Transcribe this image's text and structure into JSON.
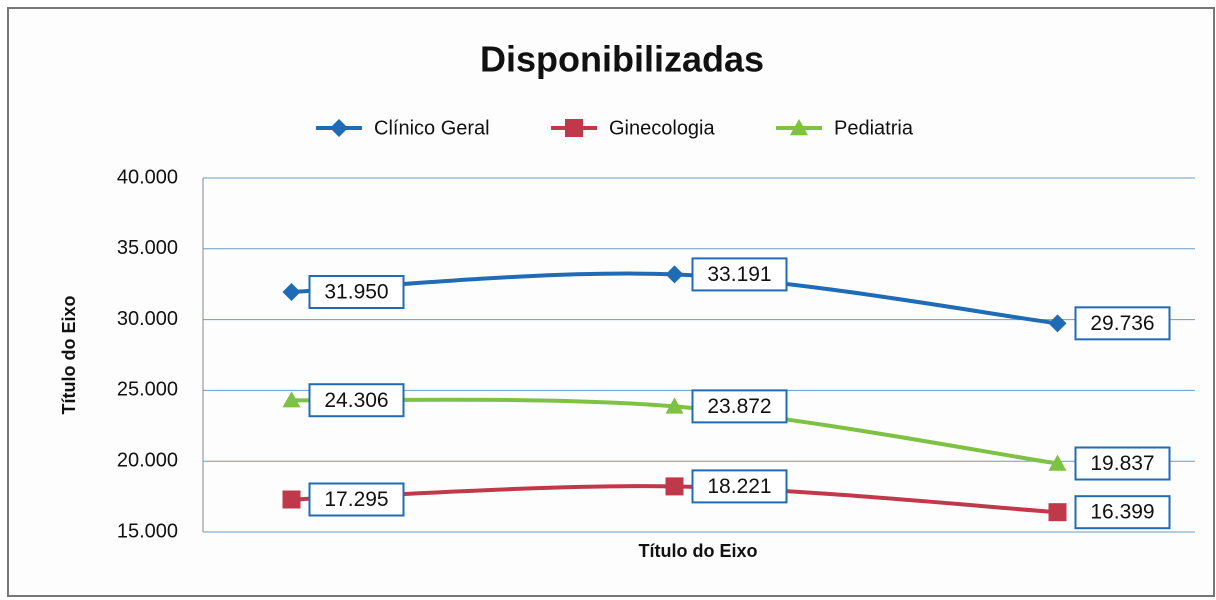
{
  "chart_data": {
    "type": "line",
    "title": "Disponibilizadas",
    "categories": [
      null,
      null,
      null
    ],
    "x_label": "Título do Eixo",
    "y_label": "Título do Eixo",
    "series": [
      {
        "name": "Clínico Geral",
        "color": "#1f6bb5",
        "marker": "diamond",
        "values": [
          31950,
          33191,
          29736
        ],
        "value_labels": [
          "31.950",
          "33.191",
          "29.736"
        ]
      },
      {
        "name": "Ginecologia",
        "color": "#c0394a",
        "marker": "square",
        "values": [
          17295,
          18221,
          16399
        ],
        "value_labels": [
          "17.295",
          "18.221",
          "16.399"
        ]
      },
      {
        "name": "Pediatria",
        "color": "#7dc242",
        "marker": "triangle",
        "values": [
          24306,
          23872,
          19837
        ],
        "value_labels": [
          "24.306",
          "23.872",
          "19.837"
        ]
      }
    ],
    "ylim": [
      15000,
      40000
    ],
    "yticks": [
      {
        "value": 15000,
        "label": "15.000"
      },
      {
        "value": 20000,
        "label": "20.000"
      },
      {
        "value": 25000,
        "label": "25.000"
      },
      {
        "value": 30000,
        "label": "30.000"
      },
      {
        "value": 35000,
        "label": "35.000"
      },
      {
        "value": 40000,
        "label": "40.000"
      }
    ],
    "grid": true,
    "smooth": true,
    "legend": "top"
  }
}
